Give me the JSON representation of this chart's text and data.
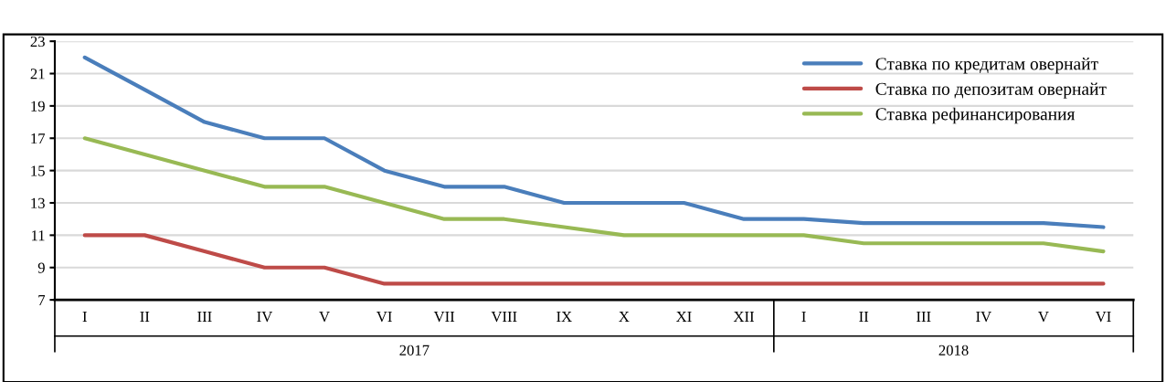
{
  "chart_data": {
    "type": "line",
    "categories": [
      "I",
      "II",
      "III",
      "IV",
      "V",
      "VI",
      "VII",
      "VIII",
      "IX",
      "X",
      "XI",
      "XII",
      "I",
      "II",
      "III",
      "IV",
      "V",
      "VI"
    ],
    "series": [
      {
        "name": "Ставка по кредитам овернайт",
        "color": "#4a7ebb",
        "values": [
          22,
          20,
          18,
          17,
          17,
          15,
          14,
          14,
          13,
          13,
          13,
          12,
          12,
          11.75,
          11.75,
          11.75,
          11.75,
          11.5
        ]
      },
      {
        "name": "Ставка по депозитам овернайт",
        "color": "#be4b48",
        "values": [
          11,
          11,
          10,
          9,
          9,
          8,
          8,
          8,
          8,
          8,
          8,
          8,
          8,
          8,
          8,
          8,
          8,
          8
        ]
      },
      {
        "name": "Ставка рефинансирования",
        "color": "#98b954",
        "values": [
          17,
          16,
          15,
          14,
          14,
          13,
          12,
          12,
          11.5,
          11,
          11,
          11,
          11,
          10.5,
          10.5,
          10.5,
          10.5,
          10
        ]
      }
    ],
    "annotations": [
      "2017",
      "2018"
    ],
    "ylim": [
      7,
      23
    ],
    "yticks": [
      7,
      9,
      11,
      13,
      15,
      17,
      19,
      21,
      23
    ],
    "grid": "y",
    "legend": "top right",
    "marker": "none",
    "line_style": "solid"
  }
}
